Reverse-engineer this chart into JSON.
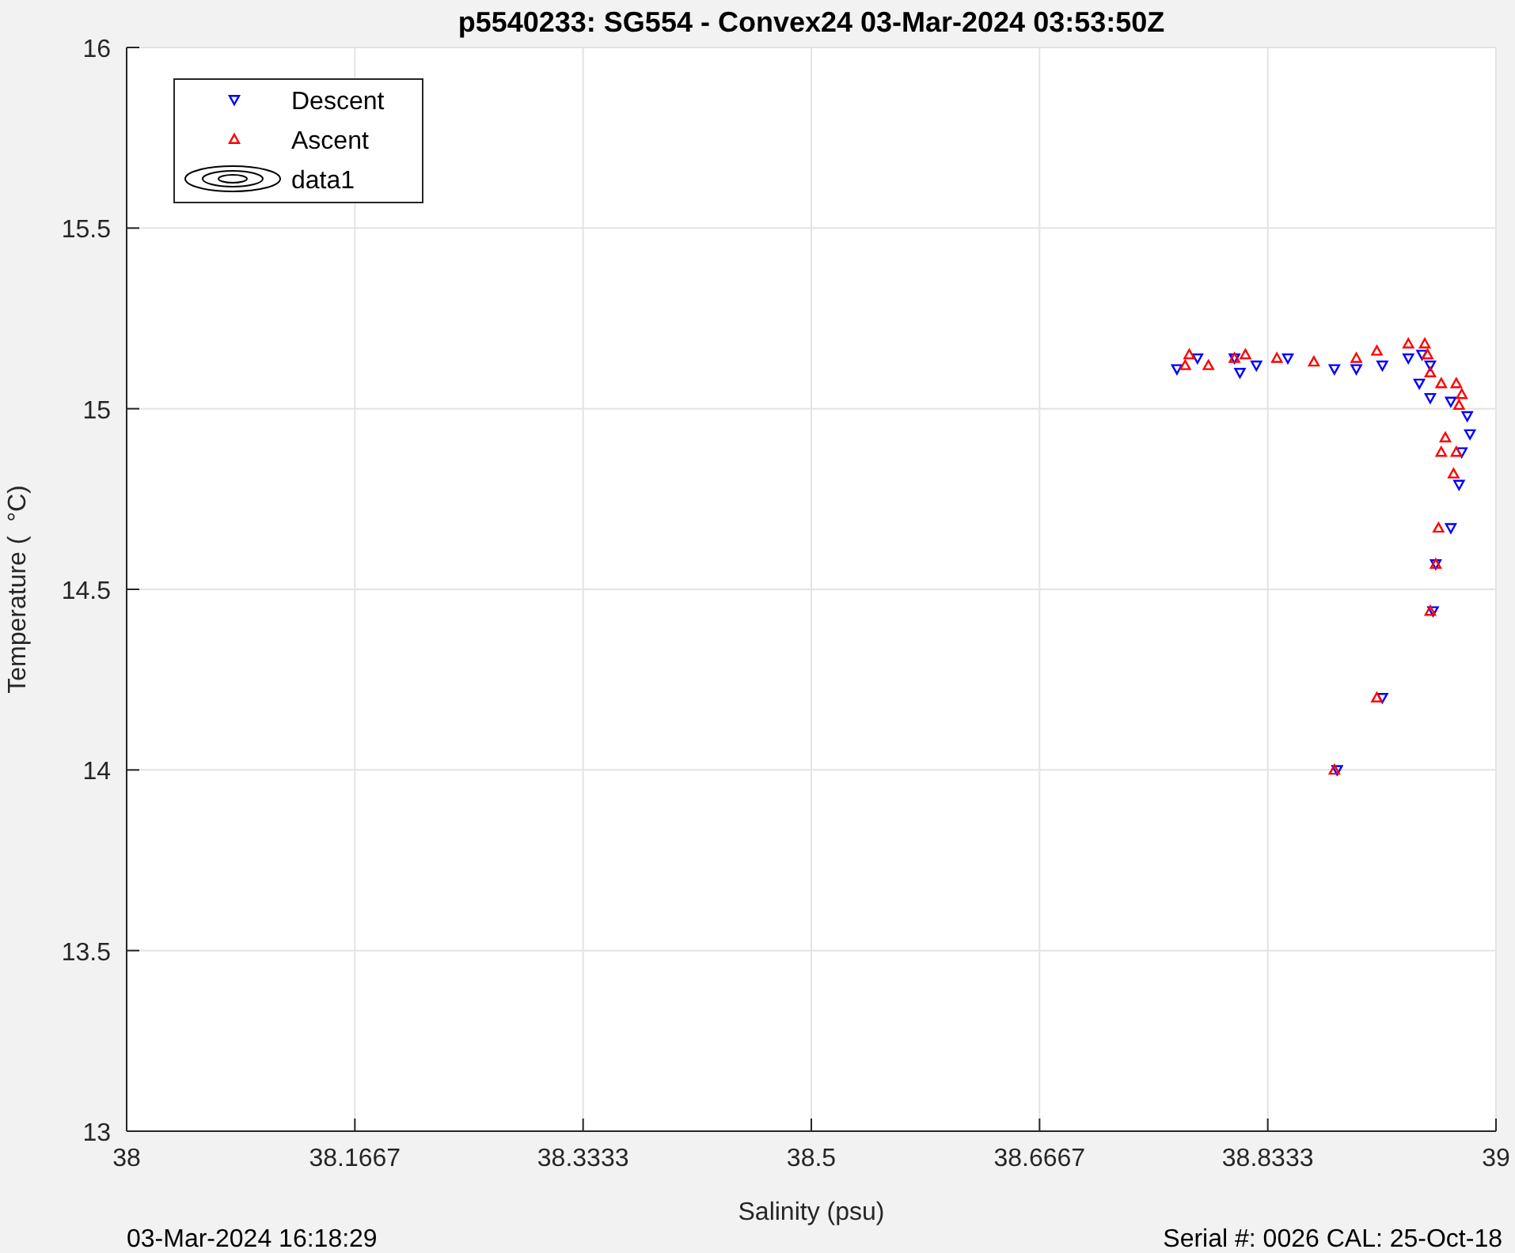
{
  "chart_data": {
    "type": "scatter",
    "title": "p5540233: SG554 - Convex24 03-Mar-2024 03:53:50Z",
    "xlabel": "Salinity (psu)",
    "ylabel": "Temperature (  °C)",
    "annotations": [
      "03-Mar-2024 16:18:29",
      "Serial #: 0026 CAL: 25-Oct-18"
    ],
    "xlim": [
      38,
      39
    ],
    "ylim": [
      13,
      16
    ],
    "xticks": [
      38,
      {
        "value": 38.1666667,
        "label": "38.1667"
      },
      {
        "value": 38.3333333,
        "label": "38.3333"
      },
      38.5,
      {
        "value": 38.6666667,
        "label": "38.6667"
      },
      {
        "value": 38.8333333,
        "label": "38.8333"
      },
      39
    ],
    "yticks": [
      13,
      13.5,
      14,
      14.5,
      15,
      15.5,
      16
    ],
    "grid": true,
    "legend": "top left",
    "series": [
      {
        "name": "Descent",
        "color": "#0000ff",
        "marker": "triangle-down",
        "x": [
          38.767,
          38.782,
          38.809,
          38.813,
          38.825,
          38.848,
          38.882,
          38.898,
          38.917,
          38.936,
          38.946,
          38.952,
          38.944,
          38.952,
          38.967,
          38.979,
          38.981,
          38.975,
          38.973,
          38.967,
          38.956,
          38.954,
          38.917,
          38.884
        ],
        "values": [
          15.11,
          15.14,
          15.14,
          15.1,
          15.12,
          15.14,
          15.11,
          15.11,
          15.12,
          15.14,
          15.15,
          15.12,
          15.07,
          15.03,
          15.02,
          14.98,
          14.93,
          14.88,
          14.79,
          14.67,
          14.57,
          14.44,
          14.2,
          14.0
        ]
      },
      {
        "name": "Ascent",
        "color": "#ff0000",
        "marker": "triangle",
        "x": [
          38.882,
          38.913,
          38.952,
          38.956,
          38.958,
          38.969,
          38.971,
          38.96,
          38.963,
          38.973,
          38.975,
          38.971,
          38.96,
          38.952,
          38.95,
          38.948,
          38.936,
          38.913,
          38.898,
          38.867,
          38.84,
          38.817,
          38.809,
          38.79,
          38.776,
          38.773
        ],
        "values": [
          14.0,
          14.2,
          14.44,
          14.57,
          14.67,
          14.82,
          14.88,
          14.88,
          14.92,
          15.01,
          15.04,
          15.07,
          15.07,
          15.1,
          15.15,
          15.18,
          15.18,
          15.16,
          15.14,
          15.13,
          15.14,
          15.15,
          15.14,
          15.12,
          15.15,
          15.12
        ]
      },
      {
        "name": "data1",
        "type": "other",
        "color": "#000000"
      }
    ]
  }
}
